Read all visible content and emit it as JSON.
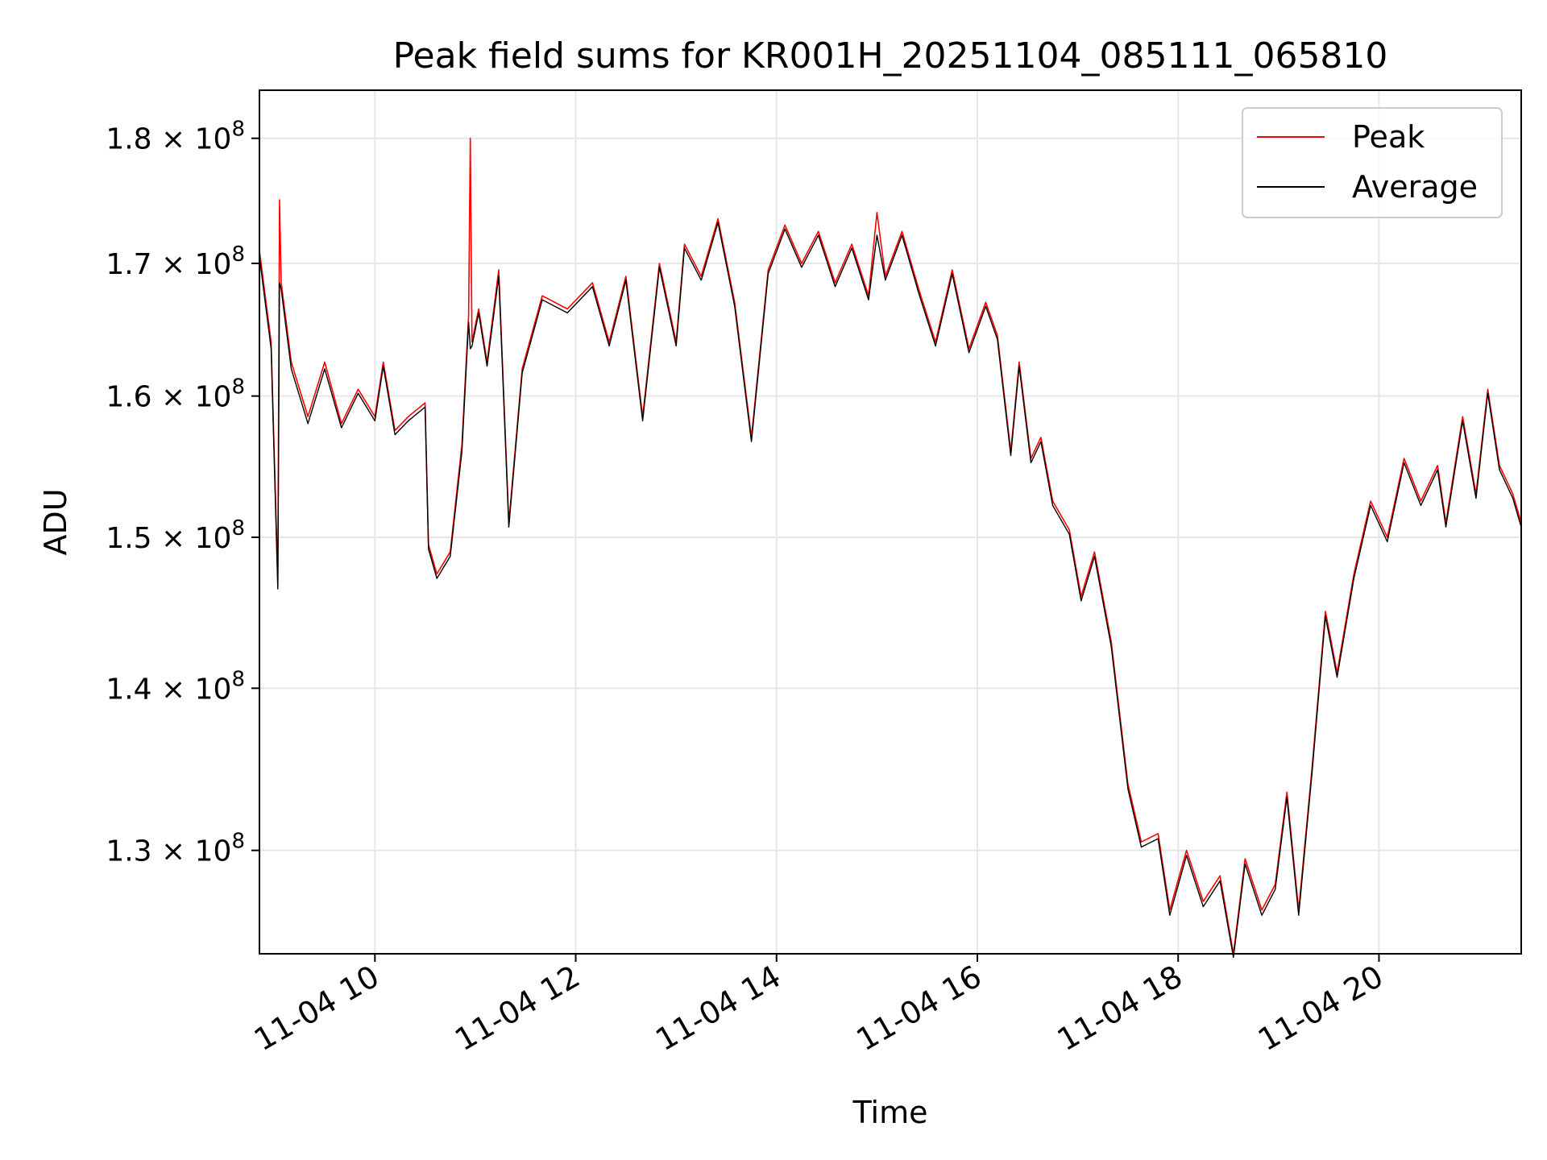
{
  "chart_data": {
    "type": "line",
    "title": "Peak field sums for KR001H_20251104_085111_065810",
    "xlabel": "Time",
    "ylabel": "ADU",
    "y_scale": "log",
    "xlim": [
      "2025-11-04 08:51",
      "2025-11-04 21:25"
    ],
    "ylim": [
      124000000,
      184000000
    ],
    "x_ticks": [
      {
        "time": "2025-11-04 10:00",
        "label": "11-04 10"
      },
      {
        "time": "2025-11-04 12:00",
        "label": "11-04 12"
      },
      {
        "time": "2025-11-04 14:00",
        "label": "11-04 14"
      },
      {
        "time": "2025-11-04 16:00",
        "label": "11-04 16"
      },
      {
        "time": "2025-11-04 18:00",
        "label": "11-04 18"
      },
      {
        "time": "2025-11-04 20:00",
        "label": "11-04 20"
      }
    ],
    "y_ticks": [
      {
        "value": 130000000,
        "mantissa": "1.3",
        "exponent": "8"
      },
      {
        "value": 140000000,
        "mantissa": "1.4",
        "exponent": "8"
      },
      {
        "value": 150000000,
        "mantissa": "1.5",
        "exponent": "8"
      },
      {
        "value": 160000000,
        "mantissa": "1.6",
        "exponent": "8"
      },
      {
        "value": 170000000,
        "mantissa": "1.7",
        "exponent": "8"
      },
      {
        "value": 180000000,
        "mantissa": "1.8",
        "exponent": "8"
      }
    ],
    "grid": true,
    "legend_position": "top-right",
    "series": [
      {
        "name": "Peak",
        "color": "#ff0000",
        "points": [
          [
            "2025-11-04 08:51",
            171000000
          ],
          [
            "2025-11-04 08:58",
            164000000
          ],
          [
            "2025-11-04 09:02",
            147000000
          ],
          [
            "2025-11-04 09:03",
            175000000
          ],
          [
            "2025-11-04 09:04",
            168500000
          ],
          [
            "2025-11-04 09:10",
            162500000
          ],
          [
            "2025-11-04 09:20",
            158500000
          ],
          [
            "2025-11-04 09:30",
            162500000
          ],
          [
            "2025-11-04 09:40",
            158000000
          ],
          [
            "2025-11-04 09:50",
            160500000
          ],
          [
            "2025-11-04 10:00",
            158500000
          ],
          [
            "2025-11-04 10:05",
            162500000
          ],
          [
            "2025-11-04 10:12",
            157500000
          ],
          [
            "2025-11-04 10:20",
            158500000
          ],
          [
            "2025-11-04 10:30",
            159500000
          ],
          [
            "2025-11-04 10:32",
            149500000
          ],
          [
            "2025-11-04 10:37",
            147500000
          ],
          [
            "2025-11-04 10:45",
            149000000
          ],
          [
            "2025-11-04 10:52",
            156500000
          ],
          [
            "2025-11-04 10:56",
            166000000
          ],
          [
            "2025-11-04 10:57",
            180000000
          ],
          [
            "2025-11-04 10:58",
            164000000
          ],
          [
            "2025-11-04 11:02",
            166500000
          ],
          [
            "2025-11-04 11:07",
            162500000
          ],
          [
            "2025-11-04 11:14",
            169500000
          ],
          [
            "2025-11-04 11:20",
            151000000
          ],
          [
            "2025-11-04 11:28",
            162000000
          ],
          [
            "2025-11-04 11:40",
            167500000
          ],
          [
            "2025-11-04 11:55",
            166500000
          ],
          [
            "2025-11-04 12:10",
            168500000
          ],
          [
            "2025-11-04 12:20",
            164000000
          ],
          [
            "2025-11-04 12:30",
            169000000
          ],
          [
            "2025-11-04 12:40",
            158500000
          ],
          [
            "2025-11-04 12:50",
            170000000
          ],
          [
            "2025-11-04 13:00",
            164000000
          ],
          [
            "2025-11-04 13:05",
            171500000
          ],
          [
            "2025-11-04 13:15",
            169000000
          ],
          [
            "2025-11-04 13:25",
            173500000
          ],
          [
            "2025-11-04 13:35",
            167000000
          ],
          [
            "2025-11-04 13:45",
            157000000
          ],
          [
            "2025-11-04 13:55",
            169500000
          ],
          [
            "2025-11-04 14:05",
            173000000
          ],
          [
            "2025-11-04 14:15",
            170000000
          ],
          [
            "2025-11-04 14:25",
            172500000
          ],
          [
            "2025-11-04 14:35",
            168500000
          ],
          [
            "2025-11-04 14:45",
            171500000
          ],
          [
            "2025-11-04 14:55",
            167500000
          ],
          [
            "2025-11-04 15:00",
            174000000
          ],
          [
            "2025-11-04 15:05",
            169000000
          ],
          [
            "2025-11-04 15:15",
            172500000
          ],
          [
            "2025-11-04 15:25",
            168000000
          ],
          [
            "2025-11-04 15:35",
            164000000
          ],
          [
            "2025-11-04 15:45",
            169500000
          ],
          [
            "2025-11-04 15:55",
            163500000
          ],
          [
            "2025-11-04 16:05",
            167000000
          ],
          [
            "2025-11-04 16:12",
            164500000
          ],
          [
            "2025-11-04 16:20",
            156000000
          ],
          [
            "2025-11-04 16:25",
            162500000
          ],
          [
            "2025-11-04 16:32",
            155500000
          ],
          [
            "2025-11-04 16:38",
            157000000
          ],
          [
            "2025-11-04 16:45",
            152500000
          ],
          [
            "2025-11-04 16:55",
            150500000
          ],
          [
            "2025-11-04 17:02",
            146000000
          ],
          [
            "2025-11-04 17:10",
            149000000
          ],
          [
            "2025-11-04 17:20",
            143000000
          ],
          [
            "2025-11-04 17:30",
            134000000
          ],
          [
            "2025-11-04 17:38",
            130500000
          ],
          [
            "2025-11-04 17:48",
            131000000
          ],
          [
            "2025-11-04 17:55",
            126500000
          ],
          [
            "2025-11-04 18:05",
            130000000
          ],
          [
            "2025-11-04 18:15",
            127000000
          ],
          [
            "2025-11-04 18:25",
            128500000
          ],
          [
            "2025-11-04 18:33",
            124000000
          ],
          [
            "2025-11-04 18:40",
            129500000
          ],
          [
            "2025-11-04 18:50",
            126500000
          ],
          [
            "2025-11-04 18:58",
            128000000
          ],
          [
            "2025-11-04 19:05",
            133500000
          ],
          [
            "2025-11-04 19:12",
            126500000
          ],
          [
            "2025-11-04 19:20",
            135000000
          ],
          [
            "2025-11-04 19:28",
            145000000
          ],
          [
            "2025-11-04 19:35",
            141000000
          ],
          [
            "2025-11-04 19:45",
            147500000
          ],
          [
            "2025-11-04 19:55",
            152500000
          ],
          [
            "2025-11-04 20:05",
            150000000
          ],
          [
            "2025-11-04 20:15",
            155500000
          ],
          [
            "2025-11-04 20:25",
            152500000
          ],
          [
            "2025-11-04 20:35",
            155000000
          ],
          [
            "2025-11-04 20:40",
            151000000
          ],
          [
            "2025-11-04 20:50",
            158500000
          ],
          [
            "2025-11-04 20:58",
            153000000
          ],
          [
            "2025-11-04 21:05",
            160500000
          ],
          [
            "2025-11-04 21:12",
            155000000
          ],
          [
            "2025-11-04 21:20",
            153000000
          ],
          [
            "2025-11-04 21:25",
            151000000
          ]
        ]
      },
      {
        "name": "Average",
        "color": "#000000",
        "points": [
          [
            "2025-11-04 08:51",
            170500000
          ],
          [
            "2025-11-04 08:58",
            163500000
          ],
          [
            "2025-11-04 09:02",
            146500000
          ],
          [
            "2025-11-04 09:03",
            168500000
          ],
          [
            "2025-11-04 09:04",
            168000000
          ],
          [
            "2025-11-04 09:10",
            162000000
          ],
          [
            "2025-11-04 09:20",
            158000000
          ],
          [
            "2025-11-04 09:30",
            162000000
          ],
          [
            "2025-11-04 09:40",
            157700000
          ],
          [
            "2025-11-04 09:50",
            160200000
          ],
          [
            "2025-11-04 10:00",
            158200000
          ],
          [
            "2025-11-04 10:05",
            162200000
          ],
          [
            "2025-11-04 10:12",
            157200000
          ],
          [
            "2025-11-04 10:20",
            158200000
          ],
          [
            "2025-11-04 10:30",
            159200000
          ],
          [
            "2025-11-04 10:32",
            149200000
          ],
          [
            "2025-11-04 10:37",
            147200000
          ],
          [
            "2025-11-04 10:45",
            148700000
          ],
          [
            "2025-11-04 10:52",
            156000000
          ],
          [
            "2025-11-04 10:56",
            165500000
          ],
          [
            "2025-11-04 10:57",
            163500000
          ],
          [
            "2025-11-04 10:58",
            163700000
          ],
          [
            "2025-11-04 11:02",
            166200000
          ],
          [
            "2025-11-04 11:07",
            162200000
          ],
          [
            "2025-11-04 11:14",
            169000000
          ],
          [
            "2025-11-04 11:20",
            150700000
          ],
          [
            "2025-11-04 11:28",
            161700000
          ],
          [
            "2025-11-04 11:40",
            167200000
          ],
          [
            "2025-11-04 11:55",
            166200000
          ],
          [
            "2025-11-04 12:10",
            168200000
          ],
          [
            "2025-11-04 12:20",
            163700000
          ],
          [
            "2025-11-04 12:30",
            168700000
          ],
          [
            "2025-11-04 12:40",
            158200000
          ],
          [
            "2025-11-04 12:50",
            169700000
          ],
          [
            "2025-11-04 13:00",
            163700000
          ],
          [
            "2025-11-04 13:05",
            171200000
          ],
          [
            "2025-11-04 13:15",
            168700000
          ],
          [
            "2025-11-04 13:25",
            173200000
          ],
          [
            "2025-11-04 13:35",
            166700000
          ],
          [
            "2025-11-04 13:45",
            156700000
          ],
          [
            "2025-11-04 13:55",
            169200000
          ],
          [
            "2025-11-04 14:05",
            172700000
          ],
          [
            "2025-11-04 14:15",
            169700000
          ],
          [
            "2025-11-04 14:25",
            172200000
          ],
          [
            "2025-11-04 14:35",
            168200000
          ],
          [
            "2025-11-04 14:45",
            171200000
          ],
          [
            "2025-11-04 14:55",
            167200000
          ],
          [
            "2025-11-04 15:00",
            172200000
          ],
          [
            "2025-11-04 15:05",
            168700000
          ],
          [
            "2025-11-04 15:15",
            172200000
          ],
          [
            "2025-11-04 15:25",
            167700000
          ],
          [
            "2025-11-04 15:35",
            163700000
          ],
          [
            "2025-11-04 15:45",
            169200000
          ],
          [
            "2025-11-04 15:55",
            163200000
          ],
          [
            "2025-11-04 16:05",
            166700000
          ],
          [
            "2025-11-04 16:12",
            164200000
          ],
          [
            "2025-11-04 16:20",
            155700000
          ],
          [
            "2025-11-04 16:25",
            162200000
          ],
          [
            "2025-11-04 16:32",
            155200000
          ],
          [
            "2025-11-04 16:38",
            156700000
          ],
          [
            "2025-11-04 16:45",
            152200000
          ],
          [
            "2025-11-04 16:55",
            150200000
          ],
          [
            "2025-11-04 17:02",
            145700000
          ],
          [
            "2025-11-04 17:10",
            148700000
          ],
          [
            "2025-11-04 17:20",
            142700000
          ],
          [
            "2025-11-04 17:30",
            133700000
          ],
          [
            "2025-11-04 17:38",
            130200000
          ],
          [
            "2025-11-04 17:48",
            130700000
          ],
          [
            "2025-11-04 17:55",
            126200000
          ],
          [
            "2025-11-04 18:05",
            129700000
          ],
          [
            "2025-11-04 18:15",
            126700000
          ],
          [
            "2025-11-04 18:25",
            128200000
          ],
          [
            "2025-11-04 18:33",
            123800000
          ],
          [
            "2025-11-04 18:40",
            129200000
          ],
          [
            "2025-11-04 18:50",
            126200000
          ],
          [
            "2025-11-04 18:58",
            127700000
          ],
          [
            "2025-11-04 19:05",
            133200000
          ],
          [
            "2025-11-04 19:12",
            126200000
          ],
          [
            "2025-11-04 19:20",
            134700000
          ],
          [
            "2025-11-04 19:28",
            144700000
          ],
          [
            "2025-11-04 19:35",
            140700000
          ],
          [
            "2025-11-04 19:45",
            147200000
          ],
          [
            "2025-11-04 19:55",
            152200000
          ],
          [
            "2025-11-04 20:05",
            149700000
          ],
          [
            "2025-11-04 20:15",
            155200000
          ],
          [
            "2025-11-04 20:25",
            152200000
          ],
          [
            "2025-11-04 20:35",
            154700000
          ],
          [
            "2025-11-04 20:40",
            150700000
          ],
          [
            "2025-11-04 20:50",
            158200000
          ],
          [
            "2025-11-04 20:58",
            152700000
          ],
          [
            "2025-11-04 21:05",
            160200000
          ],
          [
            "2025-11-04 21:12",
            154700000
          ],
          [
            "2025-11-04 21:20",
            152700000
          ],
          [
            "2025-11-04 21:25",
            150700000
          ]
        ]
      }
    ]
  }
}
